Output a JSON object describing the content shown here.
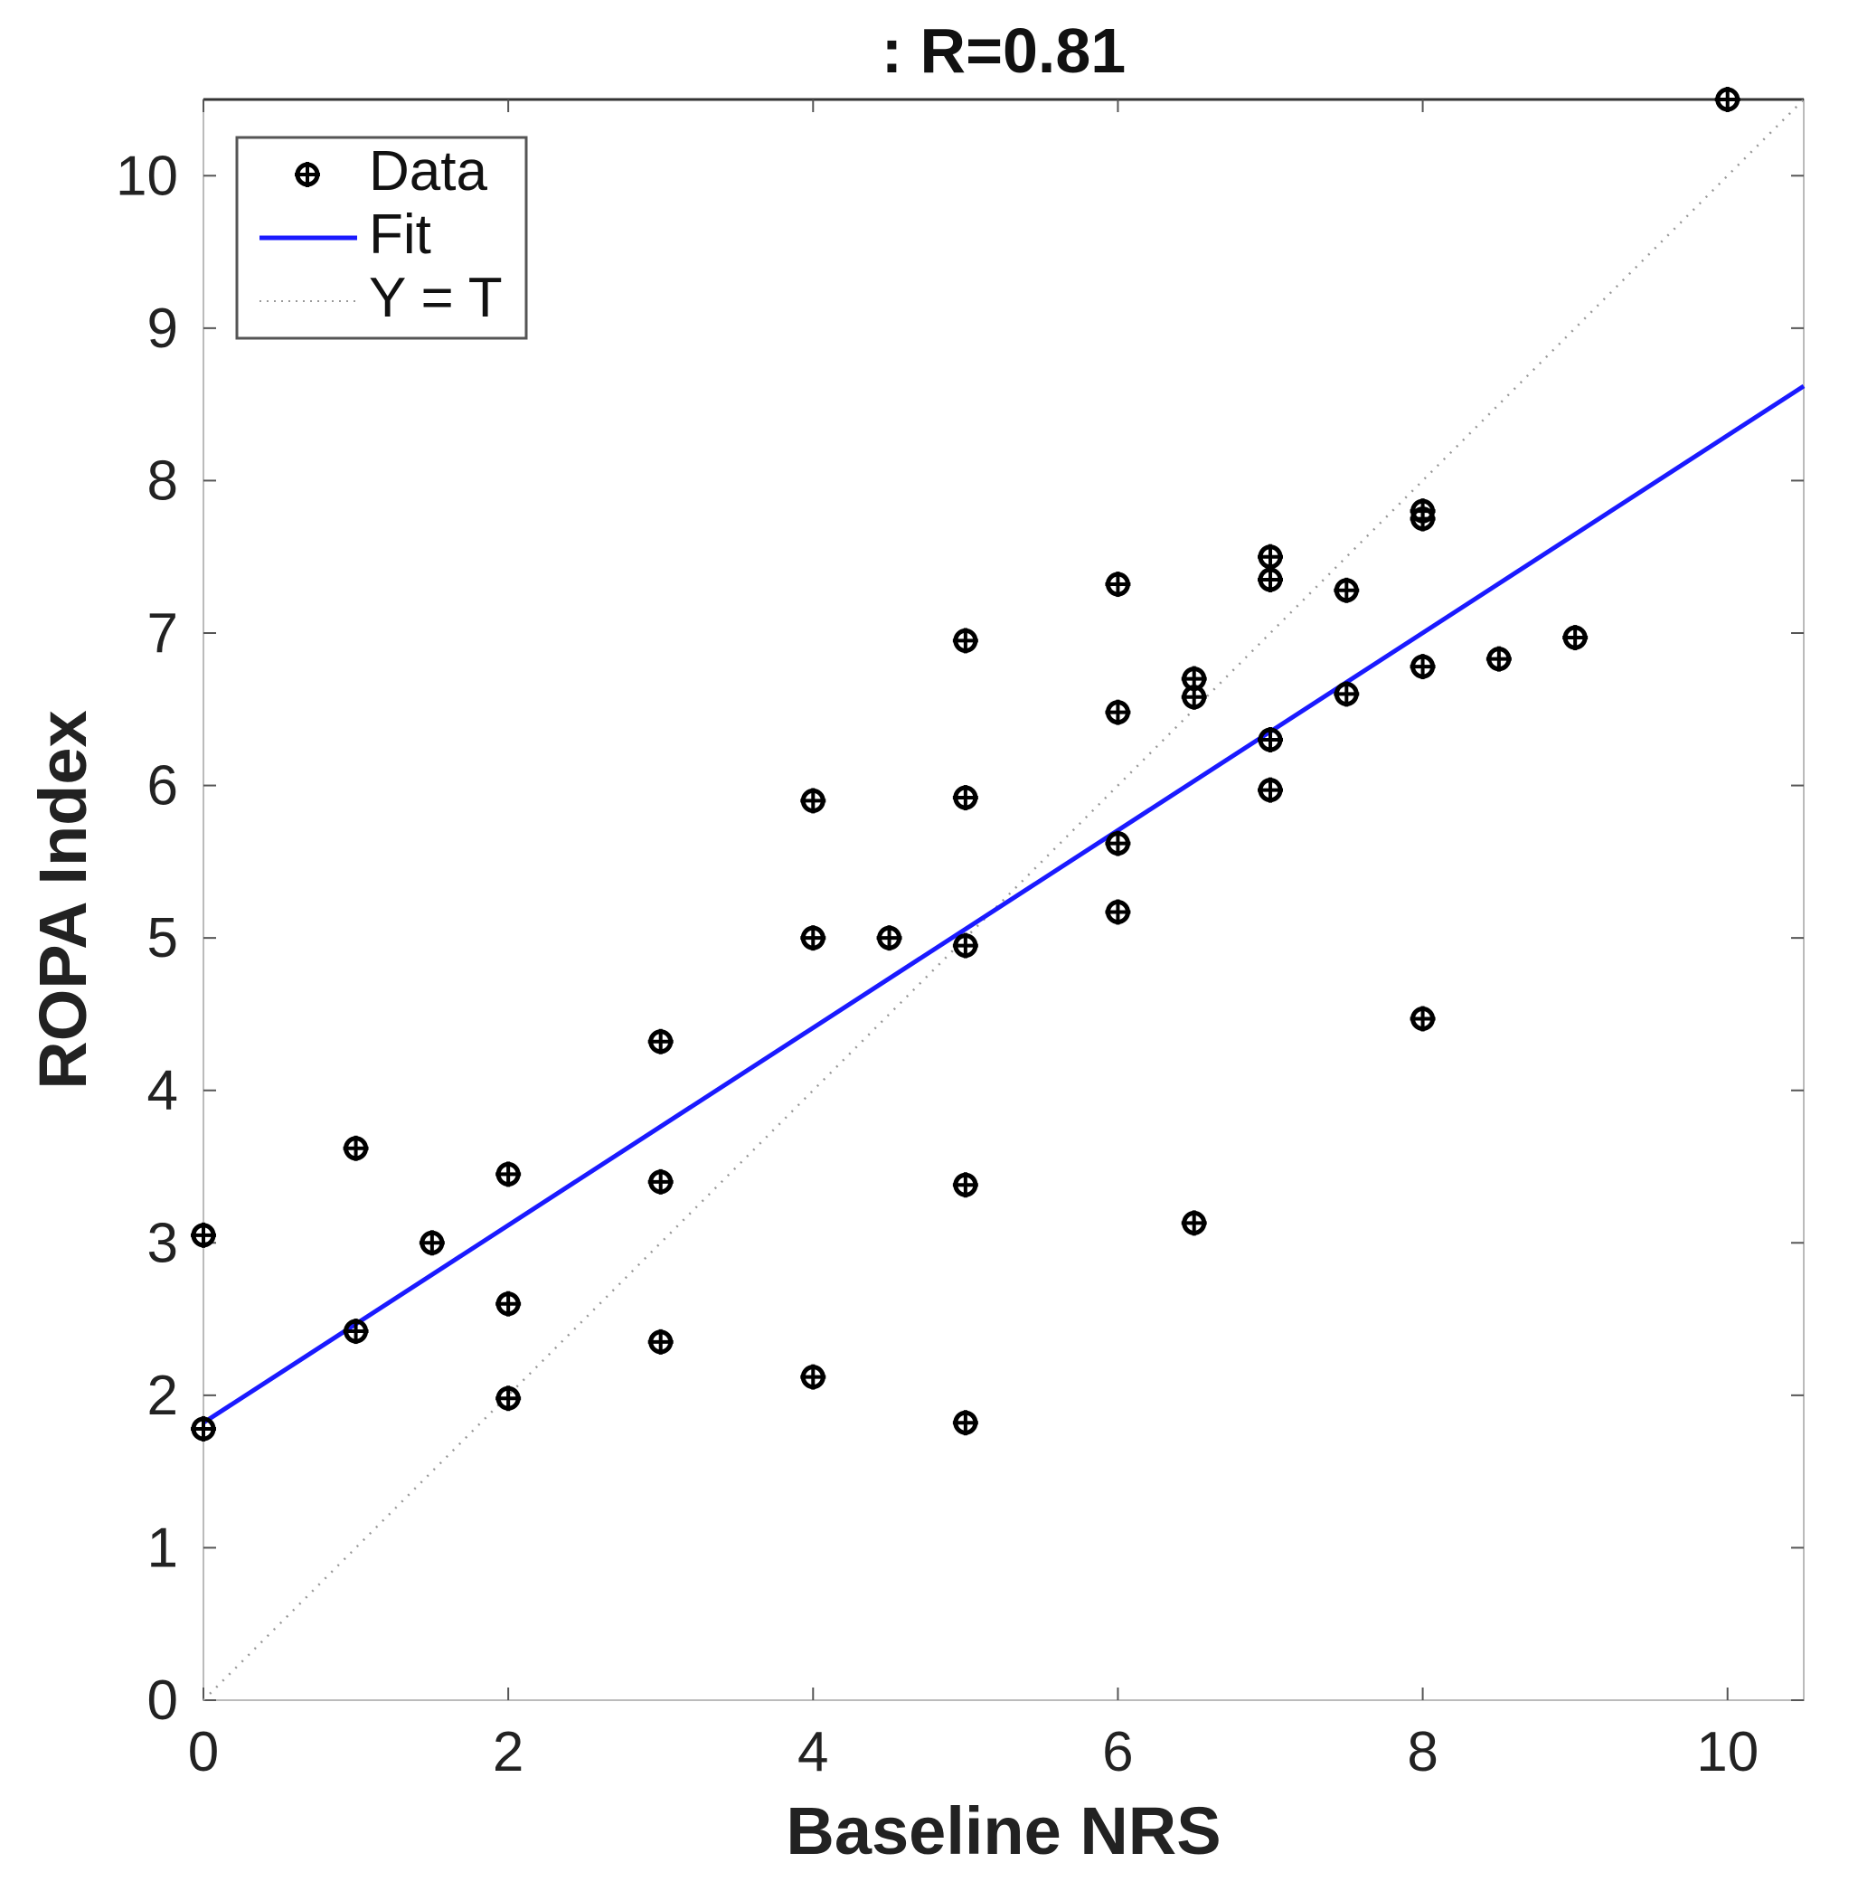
{
  "chart_data": {
    "type": "scatter",
    "title": ": R=0.81",
    "xlabel": "Baseline NRS",
    "ylabel": "ROPA Index",
    "xlim": [
      0,
      10.5
    ],
    "ylim": [
      0,
      10.5
    ],
    "xticks": [
      0,
      2,
      4,
      6,
      8,
      10
    ],
    "yticks": [
      0,
      1,
      2,
      3,
      4,
      5,
      6,
      7,
      8,
      9,
      10
    ],
    "grid": false,
    "legend": {
      "placement": "top-left",
      "entries": [
        "Data",
        "Fit",
        "Y = T"
      ]
    },
    "series": [
      {
        "name": "Data",
        "marker": "plus-circle",
        "color": "#000000",
        "points": [
          [
            0,
            3.05
          ],
          [
            0,
            1.78
          ],
          [
            1,
            3.62
          ],
          [
            1,
            2.42
          ],
          [
            1.5,
            3.0
          ],
          [
            2,
            3.45
          ],
          [
            2,
            2.6
          ],
          [
            2,
            1.98
          ],
          [
            3,
            4.32
          ],
          [
            3,
            3.4
          ],
          [
            3,
            2.35
          ],
          [
            4,
            5.9
          ],
          [
            4,
            5.0
          ],
          [
            4,
            2.12
          ],
          [
            4.5,
            5.0
          ],
          [
            5,
            6.95
          ],
          [
            5,
            5.92
          ],
          [
            5,
            4.95
          ],
          [
            5,
            3.38
          ],
          [
            5,
            1.82
          ],
          [
            6,
            7.32
          ],
          [
            6,
            6.48
          ],
          [
            6,
            5.62
          ],
          [
            6,
            5.17
          ],
          [
            6.5,
            6.7
          ],
          [
            6.5,
            6.58
          ],
          [
            6.5,
            3.13
          ],
          [
            7,
            7.5
          ],
          [
            7,
            7.35
          ],
          [
            7,
            6.3
          ],
          [
            7,
            5.97
          ],
          [
            7.5,
            7.28
          ],
          [
            7.5,
            6.6
          ],
          [
            8,
            7.8
          ],
          [
            8,
            7.75
          ],
          [
            8,
            6.78
          ],
          [
            8,
            4.47
          ],
          [
            8.5,
            6.83
          ],
          [
            9,
            6.97
          ],
          [
            10,
            10.5
          ]
        ]
      },
      {
        "name": "Fit",
        "color": "#1a1aff",
        "line": [
          [
            0,
            1.82
          ],
          [
            10.5,
            8.62
          ]
        ]
      },
      {
        "name": "Y = T",
        "color": "#999999",
        "line": [
          [
            0,
            0
          ],
          [
            10.5,
            10.5
          ]
        ]
      }
    ]
  }
}
